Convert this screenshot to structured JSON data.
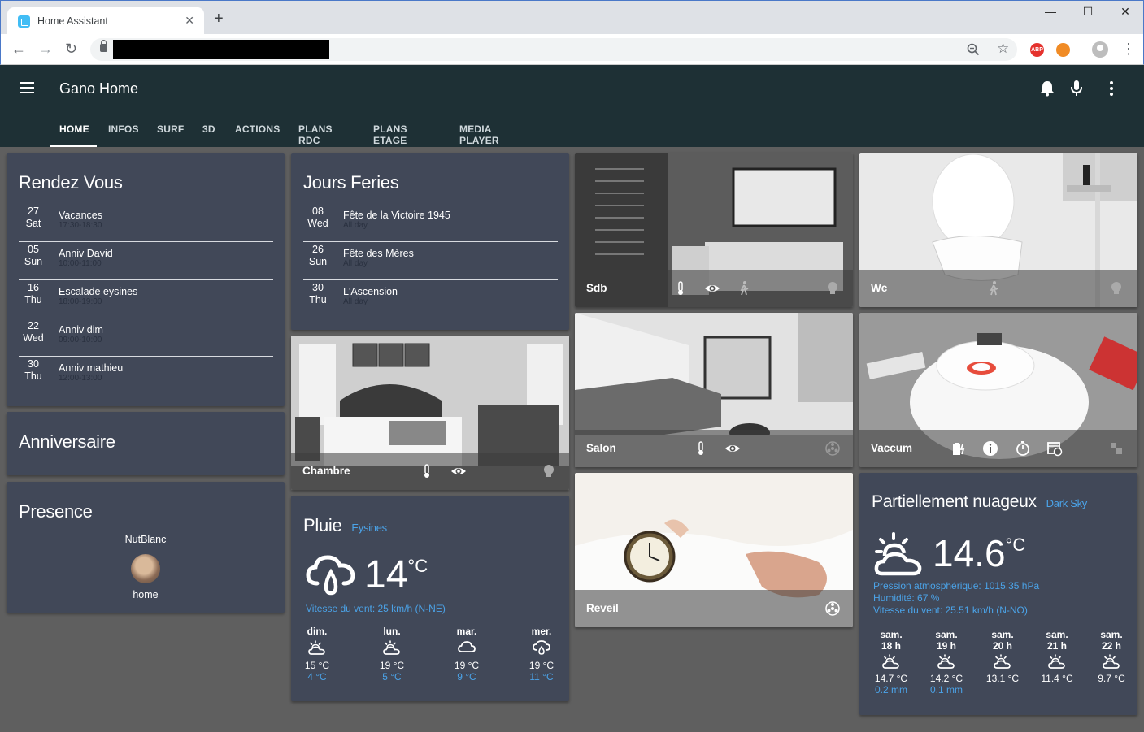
{
  "browser": {
    "tab_title": "Home Assistant",
    "tab_close": "✕",
    "new_tab": "+",
    "win_min": "—",
    "win_max": "☐",
    "win_close": "✕",
    "ext_abp": "ABP"
  },
  "header": {
    "title": "Gano Home",
    "tabs": [
      "HOME",
      "INFOS",
      "SURF",
      "3D",
      "ACTIONS",
      "PLANS RDC",
      "PLANS ETAGE",
      "MEDIA PLAYER"
    ]
  },
  "rendez_vous": {
    "title": "Rendez Vous",
    "events": [
      {
        "day": "27",
        "dow": "Sat",
        "name": "Vacances",
        "time": "17:30-18:30"
      },
      {
        "day": "05",
        "dow": "Sun",
        "name": "Anniv David",
        "time": "10:00-11:00"
      },
      {
        "day": "16",
        "dow": "Thu",
        "name": "Escalade eysines",
        "time": "18:00-19:00"
      },
      {
        "day": "22",
        "dow": "Wed",
        "name": "Anniv dim",
        "time": "09:00-10:00"
      },
      {
        "day": "30",
        "dow": "Thu",
        "name": "Anniv mathieu",
        "time": "12:00-13:00"
      }
    ]
  },
  "jours_feries": {
    "title": "Jours Feries",
    "events": [
      {
        "day": "08",
        "dow": "Wed",
        "name": "Fête de la Victoire 1945",
        "time": "All day"
      },
      {
        "day": "26",
        "dow": "Sun",
        "name": "Fête des Mères",
        "time": "All day"
      },
      {
        "day": "30",
        "dow": "Thu",
        "name": "L'Ascension",
        "time": "All day"
      }
    ]
  },
  "anniversaire": {
    "title": "Anniversaire"
  },
  "presence": {
    "title": "Presence",
    "person": "NutBlanc",
    "state": "home"
  },
  "rooms": {
    "sdb": "Sdb",
    "wc": "Wc",
    "chambre": "Chambre",
    "salon": "Salon",
    "vaccum": "Vaccum",
    "reveil": "Reveil"
  },
  "pluie": {
    "title": "Pluie",
    "location": "Eysines",
    "temp": "14",
    "unit": "°C",
    "wind": "Vitesse du vent: 25 km/h (N-NE)",
    "forecast": [
      {
        "day": "dim.",
        "icon": "partly-cloudy-icon",
        "hi": "15 °C",
        "lo": "4 °C"
      },
      {
        "day": "lun.",
        "icon": "partly-cloudy-icon",
        "hi": "19 °C",
        "lo": "5 °C"
      },
      {
        "day": "mar.",
        "icon": "cloudy-icon",
        "hi": "19 °C",
        "lo": "9 °C"
      },
      {
        "day": "mer.",
        "icon": "rain-icon",
        "hi": "19 °C",
        "lo": "11 °C"
      }
    ]
  },
  "darksky": {
    "title": "Partiellement nuageux",
    "source": "Dark Sky",
    "temp": "14.6",
    "unit": "°C",
    "pressure": "Pression atmosphérique: 1015.35 hPa",
    "humidity": "Humidité: 67 %",
    "wind": "Vitesse du vent: 25.51 km/h (N-NO)",
    "forecast": [
      {
        "day": "sam.",
        "hour": "18 h",
        "temp": "14.7 °C",
        "precip": "0.2 mm"
      },
      {
        "day": "sam.",
        "hour": "19 h",
        "temp": "14.2 °C",
        "precip": "0.1 mm"
      },
      {
        "day": "sam.",
        "hour": "20 h",
        "temp": "13.1 °C",
        "precip": ""
      },
      {
        "day": "sam.",
        "hour": "21 h",
        "temp": "11.4 °C",
        "precip": ""
      },
      {
        "day": "sam.",
        "hour": "22 h",
        "temp": "9.7 °C",
        "precip": ""
      }
    ]
  },
  "colors": {
    "accent": "#4ba3e8",
    "card": "#414858",
    "header": "#1e3035",
    "bg": "#5f5f5f"
  }
}
